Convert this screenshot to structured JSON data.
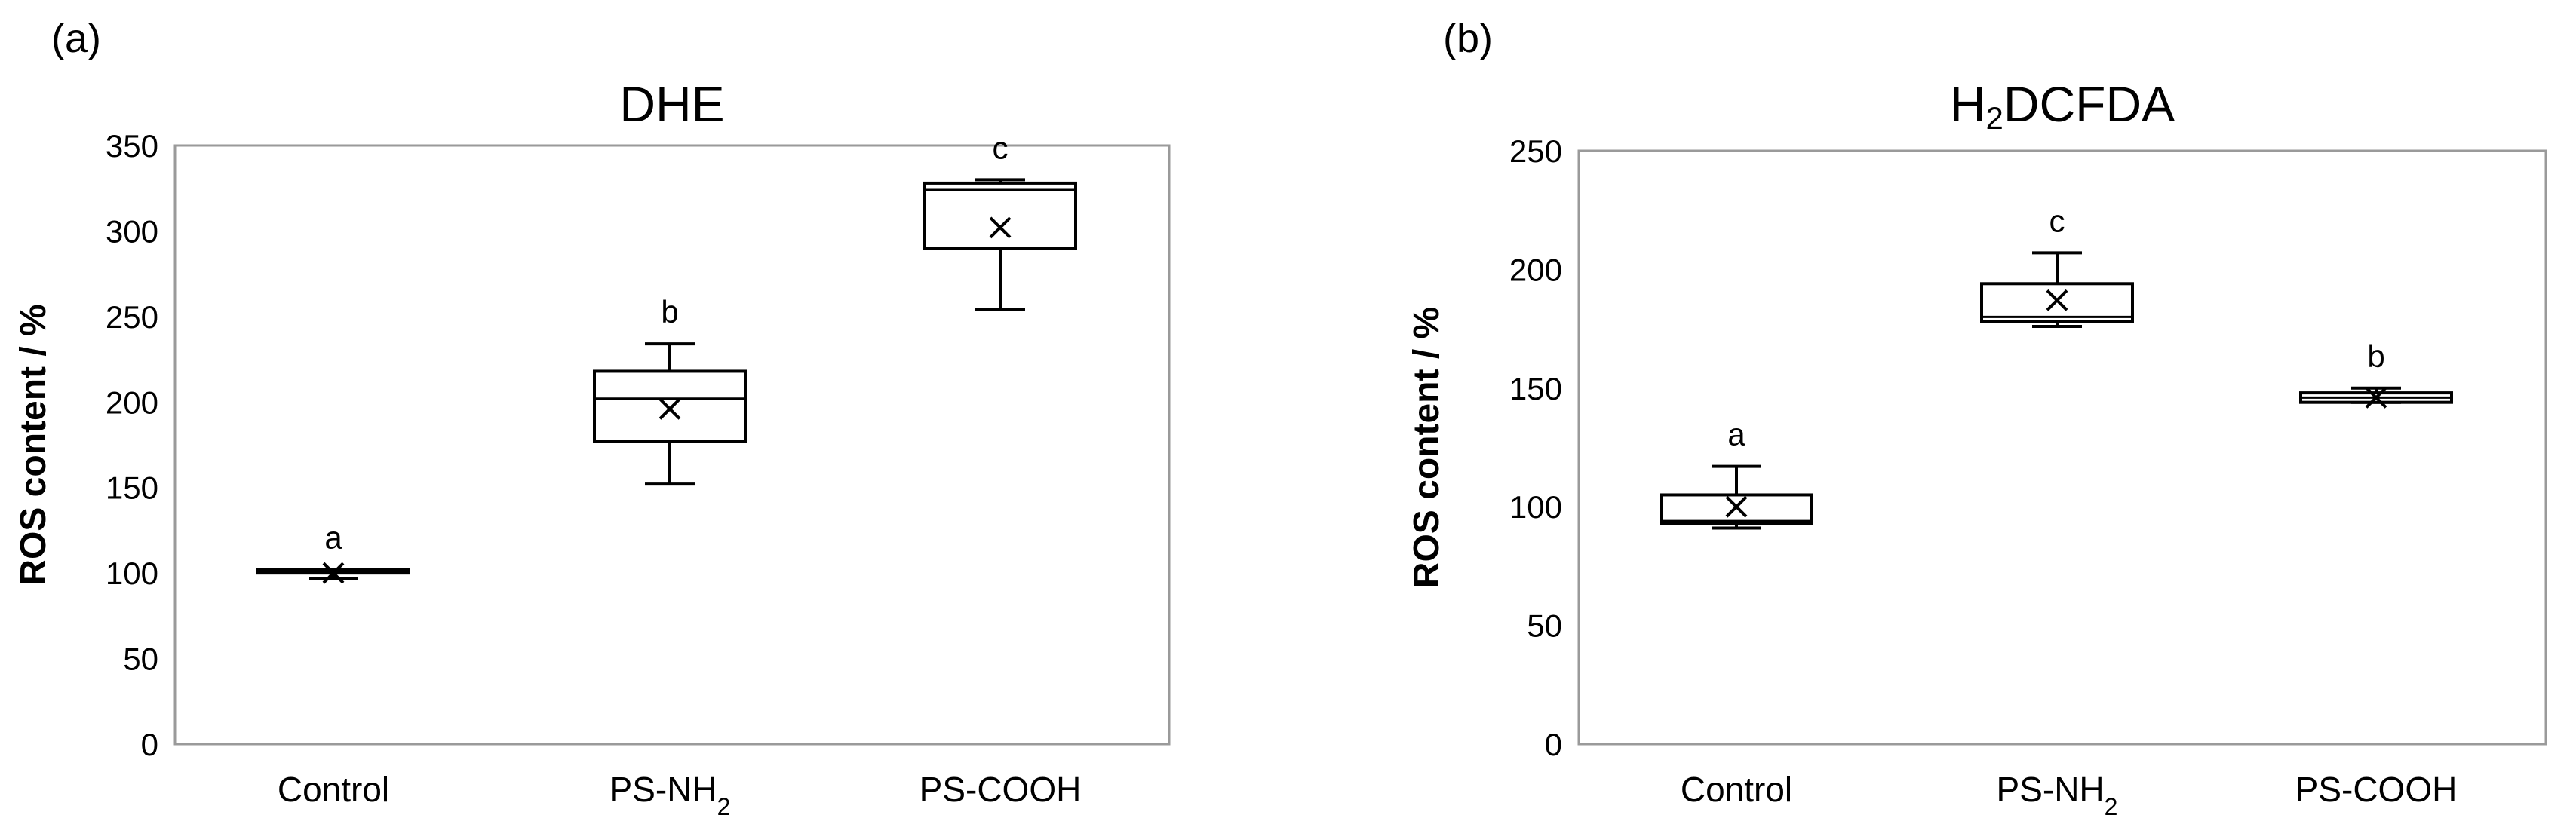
{
  "panels": [
    {
      "label": "(a)",
      "title": "DHE",
      "chart_data": {
        "type": "box",
        "title": "DHE",
        "xlabel": "",
        "ylabel": "ROS content / %",
        "ylim": [
          0,
          350
        ],
        "yticks": [
          0,
          50,
          100,
          150,
          200,
          250,
          300,
          350
        ],
        "categories": [
          "Control",
          "PS-NH₂",
          "PS-COOH"
        ],
        "boxes": [
          {
            "category": "Control",
            "min": 97,
            "q1": 100,
            "median": 101,
            "q3": 102,
            "max": 102,
            "mean": 100,
            "group": "a"
          },
          {
            "category": "PS-NH₂",
            "min": 152,
            "q1": 177,
            "median": 202,
            "q3": 218,
            "max": 234,
            "mean": 196,
            "group": "b"
          },
          {
            "category": "PS-COOH",
            "min": 254,
            "q1": 290,
            "median": 324,
            "q3": 328,
            "max": 330,
            "mean": 302,
            "group": "c"
          }
        ],
        "grid": false,
        "legend": "none"
      }
    },
    {
      "label": "(b)",
      "title": "H2DCFDA",
      "chart_data": {
        "type": "box",
        "title": "H2DCFDA",
        "xlabel": "",
        "ylabel": "ROS content / %",
        "ylim": [
          0,
          250
        ],
        "yticks": [
          0,
          50,
          100,
          150,
          200,
          250
        ],
        "categories": [
          "Control",
          "PS-NH₂",
          "PS-COOH"
        ],
        "boxes": [
          {
            "category": "Control",
            "min": 91,
            "q1": 93,
            "median": 94,
            "q3": 105,
            "max": 117,
            "mean": 100,
            "group": "a"
          },
          {
            "category": "PS-NH₂",
            "min": 176,
            "q1": 178,
            "median": 180,
            "q3": 194,
            "max": 207,
            "mean": 187,
            "group": "c"
          },
          {
            "category": "PS-COOH",
            "min": 144,
            "q1": 144,
            "median": 146,
            "q3": 148,
            "max": 150,
            "mean": 146,
            "group": "b"
          }
        ],
        "grid": false,
        "legend": "none"
      }
    }
  ]
}
